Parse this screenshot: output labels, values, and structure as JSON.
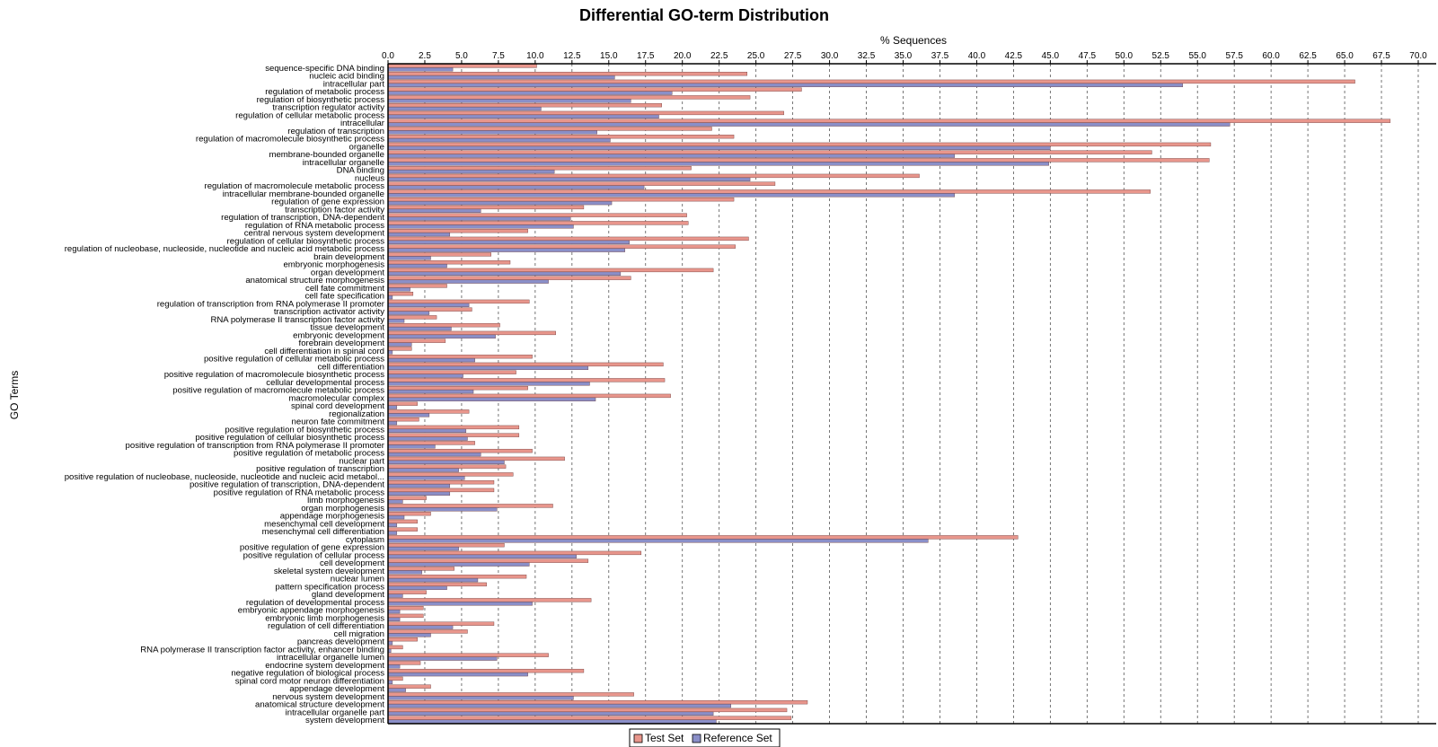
{
  "chart_data": {
    "type": "bar",
    "orientation": "horizontal",
    "title": "Differential GO-term Distribution",
    "xlabel": "% Sequences",
    "ylabel": "GO Terms",
    "xlim": [
      0,
      70
    ],
    "x_ticks": [
      "0.0",
      "2.5",
      "5.0",
      "7.5",
      "10.0",
      "12.5",
      "15.0",
      "17.5",
      "20.0",
      "22.5",
      "25.0",
      "27.5",
      "30.0",
      "32.5",
      "35.0",
      "37.5",
      "40.0",
      "42.5",
      "45.0",
      "47.5",
      "50.0",
      "52.5",
      "55.0",
      "57.5",
      "60.0",
      "62.5",
      "65.0",
      "67.5",
      "70.0"
    ],
    "x_tick_values": [
      0,
      2.5,
      5,
      7.5,
      10,
      12.5,
      15,
      17.5,
      20,
      22.5,
      25,
      27.5,
      30,
      32.5,
      35,
      37.5,
      40,
      42.5,
      45,
      47.5,
      50,
      52.5,
      55,
      57.5,
      60,
      62.5,
      65,
      67.5,
      70
    ],
    "grid": "vertical dashed",
    "legend_position": "bottom-center",
    "categories": [
      "sequence-specific DNA binding",
      "nucleic acid binding",
      "intracellular part",
      "regulation of metabolic process",
      "regulation of biosynthetic process",
      "transcription regulator activity",
      "regulation of cellular metabolic process",
      "intracellular",
      "regulation of transcription",
      "regulation of macromolecule biosynthetic process",
      "organelle",
      "membrane-bounded organelle",
      "intracellular organelle",
      "DNA binding",
      "nucleus",
      "regulation of macromolecule metabolic process",
      "intracellular membrane-bounded organelle",
      "regulation of gene expression",
      "transcription factor activity",
      "regulation of transcription, DNA-dependent",
      "regulation of RNA metabolic process",
      "central nervous system development",
      "regulation of cellular biosynthetic process",
      "regulation of nucleobase, nucleoside, nucleotide and nucleic acid metabolic process",
      "brain development",
      "embryonic morphogenesis",
      "organ development",
      "anatomical structure morphogenesis",
      "cell fate commitment",
      "cell fate specification",
      "regulation of transcription from RNA polymerase II promoter",
      "transcription activator activity",
      "RNA polymerase II transcription factor activity",
      "tissue development",
      "embryonic development",
      "forebrain development",
      "cell differentiation in spinal cord",
      "positive regulation of cellular metabolic process",
      "cell differentiation",
      "positive regulation of macromolecule biosynthetic process",
      "cellular developmental process",
      "positive regulation of macromolecule metabolic process",
      "macromolecular complex",
      "spinal cord development",
      "regionalization",
      "neuron fate commitment",
      "positive regulation of biosynthetic process",
      "positive regulation of cellular biosynthetic process",
      "positive regulation of transcription from RNA polymerase II promoter",
      "positive regulation of metabolic process",
      "nuclear part",
      "positive regulation of transcription",
      "positive regulation of nucleobase, nucleoside, nucleotide and nucleic acid metabol...",
      "positive regulation of transcription, DNA-dependent",
      "positive regulation of RNA metabolic process",
      "limb morphogenesis",
      "organ morphogenesis",
      "appendage morphogenesis",
      "mesenchymal cell development",
      "mesenchymal cell differentiation",
      "cytoplasm",
      "positive regulation of gene expression",
      "positive regulation of cellular process",
      "cell development",
      "skeletal system development",
      "nuclear lumen",
      "pattern specification process",
      "gland development",
      "regulation of developmental process",
      "embryonic appendage morphogenesis",
      "embryonic limb morphogenesis",
      "regulation of cell differentiation",
      "cell migration",
      "pancreas development",
      "RNA polymerase II transcription factor activity, enhancer binding",
      "intracellular organelle lumen",
      "endocrine system development",
      "negative regulation of biological process",
      "spinal cord motor neuron differentiation",
      "appendage development",
      "nervous system development",
      "anatomical structure development",
      "intracellular organelle part",
      "system development"
    ],
    "series": [
      {
        "name": "Test Set",
        "color": "#e8968c",
        "values": [
          10.1,
          24.4,
          65.7,
          28.1,
          24.6,
          18.6,
          26.9,
          68.1,
          22.0,
          23.5,
          55.9,
          51.9,
          55.8,
          20.6,
          36.1,
          26.3,
          51.8,
          23.5,
          13.3,
          20.3,
          20.4,
          9.5,
          24.5,
          23.6,
          7.0,
          8.3,
          22.1,
          16.5,
          4.0,
          1.7,
          9.6,
          5.7,
          3.3,
          7.6,
          11.4,
          3.9,
          1.6,
          9.8,
          18.7,
          8.7,
          18.8,
          9.5,
          19.2,
          2.0,
          5.5,
          2.1,
          8.9,
          8.9,
          5.9,
          9.8,
          12.0,
          8.0,
          8.5,
          7.2,
          7.2,
          2.6,
          11.2,
          2.9,
          2.0,
          2.0,
          42.8,
          7.9,
          17.2,
          13.6,
          4.5,
          9.4,
          6.7,
          2.6,
          13.8,
          2.4,
          2.4,
          7.2,
          5.4,
          2.0,
          1.0,
          10.9,
          2.2,
          13.3,
          1.0,
          2.9,
          16.7,
          28.5,
          27.1,
          27.4
        ],
        "series_values_of": "Test Set"
      },
      {
        "name": "Reference Set",
        "color": "#8a8fc8",
        "values": [
          4.4,
          15.4,
          54.0,
          19.3,
          16.5,
          10.4,
          18.4,
          57.2,
          14.2,
          15.1,
          45.0,
          38.5,
          44.9,
          11.3,
          24.6,
          17.4,
          38.5,
          15.2,
          6.3,
          12.4,
          12.6,
          4.2,
          16.4,
          16.1,
          2.9,
          4.0,
          15.8,
          10.9,
          1.5,
          0.3,
          5.5,
          2.8,
          1.1,
          4.3,
          7.3,
          1.6,
          0.3,
          5.9,
          13.6,
          5.1,
          13.7,
          5.8,
          14.1,
          0.6,
          2.8,
          0.6,
          5.3,
          5.4,
          3.2,
          6.3,
          7.9,
          4.8,
          5.2,
          4.2,
          4.2,
          1.0,
          7.4,
          1.1,
          0.6,
          0.6,
          36.7,
          4.8,
          12.8,
          9.6,
          2.3,
          6.1,
          4.0,
          1.0,
          9.8,
          0.8,
          0.8,
          4.4,
          2.9,
          0.3,
          0.2,
          7.4,
          0.8,
          9.5,
          0.3,
          1.2,
          12.6,
          23.3,
          22.1,
          22.3
        ]
      }
    ]
  }
}
